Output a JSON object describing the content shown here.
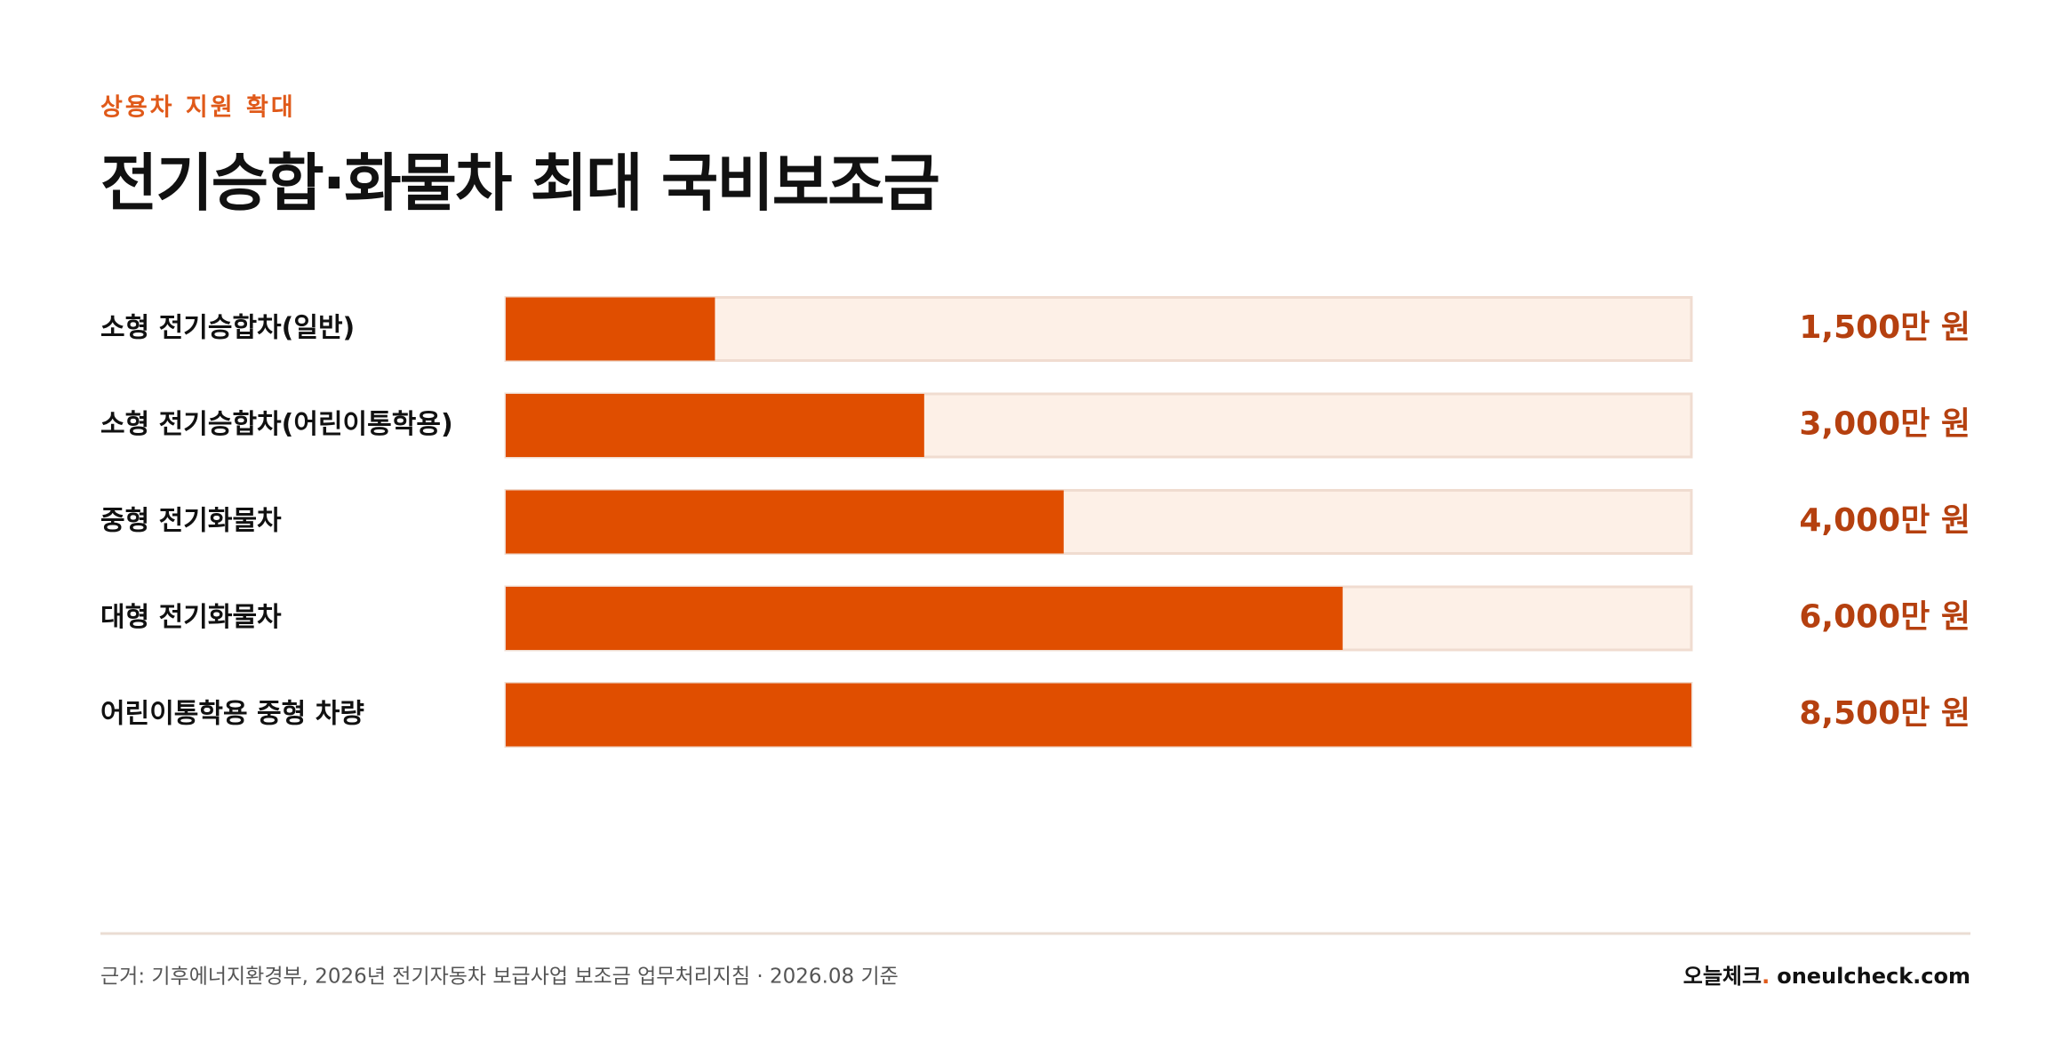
{
  "chart_data": {
    "type": "bar",
    "orientation": "horizontal",
    "kicker": "상용차 지원 확대",
    "title": "전기승합·화물차 최대 국비보조금",
    "categories": [
      "소형 전기승합차(일반)",
      "소형 전기승합차(어린이통학용)",
      "중형 전기화물차",
      "대형 전기화물차",
      "어린이통학용 중형 차량"
    ],
    "values": [
      1500,
      3000,
      4000,
      6000,
      8500
    ],
    "value_labels": [
      "1,500만 원",
      "3,000만 원",
      "4,000만 원",
      "6,000만 원",
      "8,500만 원"
    ],
    "xlim": [
      0,
      8500
    ],
    "color": "#e04e00",
    "track_color": "#fdf0e7"
  },
  "footer": {
    "source": "근거: 기후에너지환경부, 2026년 전기자동차 보급사업 보조금 업무처리지침 · 2026.08 기준",
    "brand_name": "오늘체크",
    "brand_dot": ".",
    "brand_site": "oneulcheck.com"
  }
}
